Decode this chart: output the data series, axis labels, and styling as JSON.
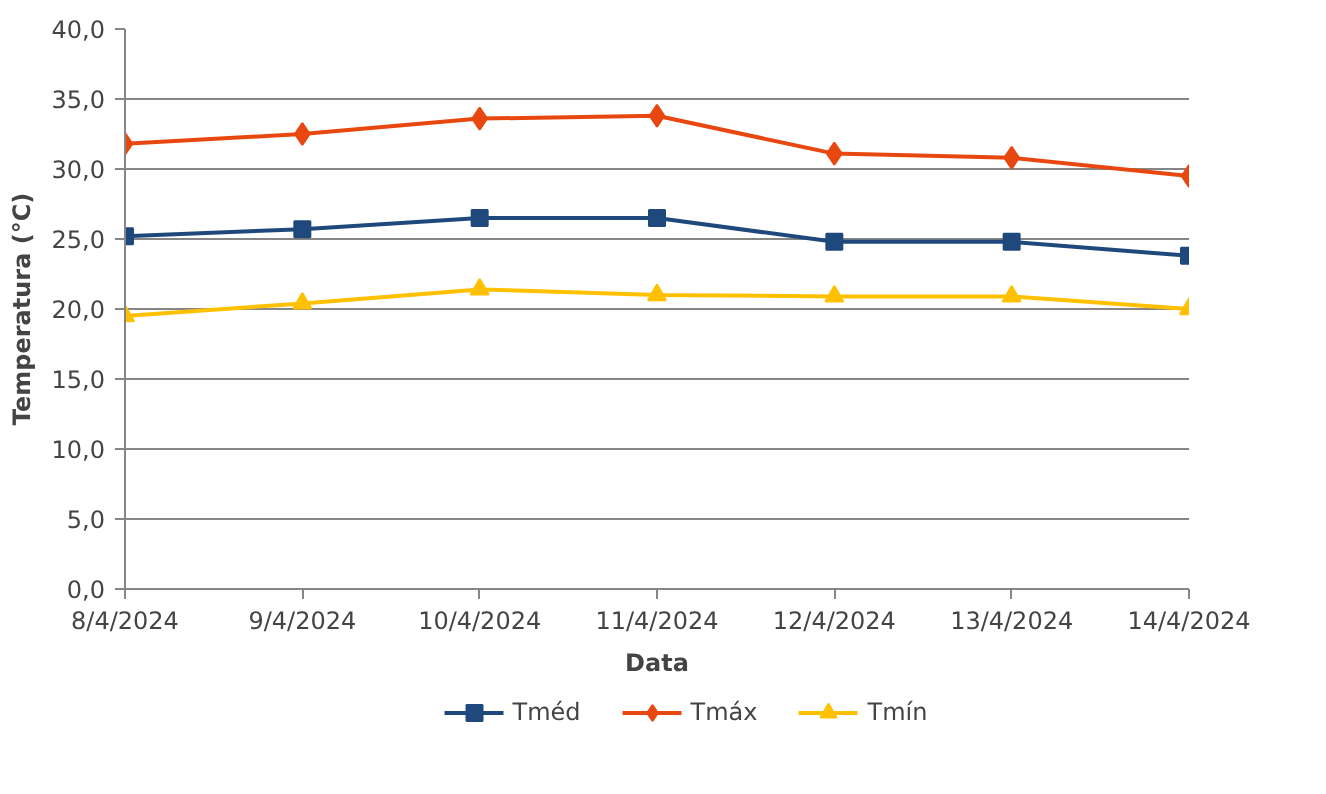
{
  "chart_data": {
    "type": "line",
    "xlabel": "Data",
    "ylabel": "Temperatura (°C)",
    "categories": [
      "8/4/2024",
      "9/4/2024",
      "10/4/2024",
      "11/4/2024",
      "12/4/2024",
      "13/4/2024",
      "14/4/2024"
    ],
    "ylim": [
      0,
      40
    ],
    "yticks": [
      {
        "value": 0,
        "label": "0,0"
      },
      {
        "value": 5,
        "label": "5,0"
      },
      {
        "value": 10,
        "label": "10,0"
      },
      {
        "value": 15,
        "label": "15,0"
      },
      {
        "value": 20,
        "label": "20,0"
      },
      {
        "value": 25,
        "label": "25,0"
      },
      {
        "value": 30,
        "label": "30,0"
      },
      {
        "value": 35,
        "label": "35,0"
      },
      {
        "value": 40,
        "label": "40,0"
      }
    ],
    "grid": "y",
    "legend": "bottom",
    "line_style": "solid",
    "series": [
      {
        "name": "Tméd",
        "color": "#1f497d",
        "marker": "square",
        "values": [
          25.2,
          25.7,
          26.5,
          26.5,
          24.8,
          24.8,
          23.8
        ]
      },
      {
        "name": "Tmáx",
        "color": "#e8470f",
        "marker": "diamond",
        "values": [
          31.8,
          32.5,
          33.6,
          33.8,
          31.1,
          30.8,
          29.5
        ]
      },
      {
        "name": "Tmín",
        "color": "#ffc000",
        "marker": "triangle",
        "values": [
          19.5,
          20.4,
          21.4,
          21.0,
          20.9,
          20.9,
          20.0
        ]
      }
    ]
  }
}
